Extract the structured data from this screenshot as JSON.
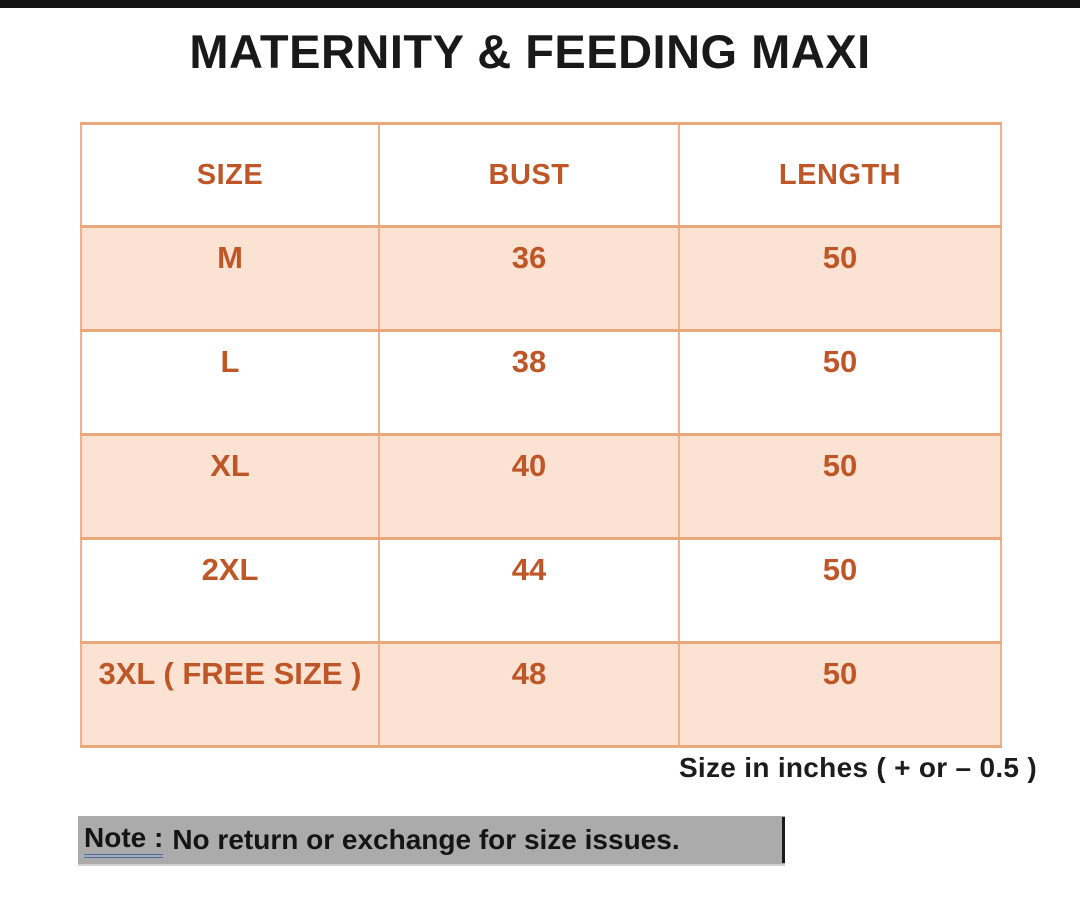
{
  "page": {
    "title": "MATERNITY & FEEDING MAXI",
    "units_note": "Size in inches ( + or – 0.5 )",
    "note": {
      "label": "Note :",
      "text": "No return or exchange for size issues."
    }
  },
  "size_chart": {
    "columns": [
      "SIZE",
      "BUST",
      "LENGTH"
    ],
    "rows": [
      {
        "size": "M",
        "bust": "36",
        "length": "50"
      },
      {
        "size": "L",
        "bust": "38",
        "length": "50"
      },
      {
        "size": "XL",
        "bust": "40",
        "length": "50"
      },
      {
        "size": "2XL",
        "bust": "44",
        "length": "50"
      },
      {
        "size": "3XL ( FREE SIZE )",
        "bust": "48",
        "length": "50"
      }
    ]
  },
  "colors": {
    "accent_text": "#BF5627",
    "row_fill": "#FBE2D2",
    "table_border": "#EDAB80",
    "title_text": "#191919",
    "note_highlight": "#ABABAB",
    "note_underline": "#4A6FAE",
    "top_bar": "#141414"
  }
}
